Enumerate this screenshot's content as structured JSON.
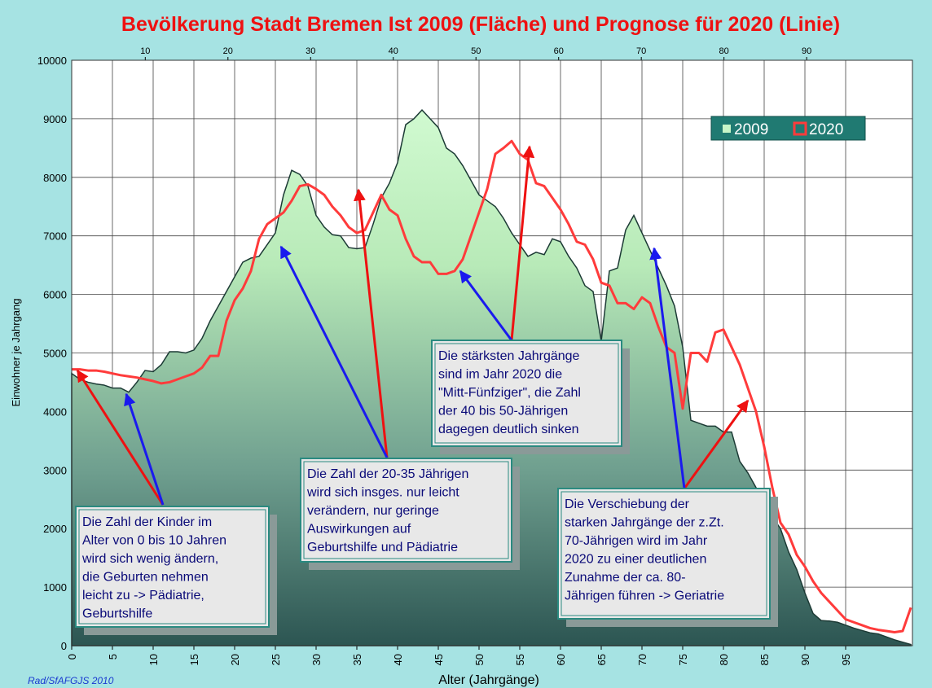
{
  "chart_data": {
    "type": "area_line",
    "title": "Bevölkerung Stadt Bremen Ist 2009 (Fläche) und Prognose für 2020 (Linie)",
    "x_label": "Alter (Jahrgänge)",
    "y_label": "Einwohner je Jahrgang",
    "credit": "Rad/SfAFGJS 2010",
    "x": [
      0,
      1,
      2,
      3,
      4,
      5,
      6,
      7,
      8,
      9,
      10,
      11,
      12,
      13,
      14,
      15,
      16,
      17,
      18,
      19,
      20,
      21,
      22,
      23,
      24,
      25,
      26,
      27,
      28,
      29,
      30,
      31,
      32,
      33,
      34,
      35,
      36,
      37,
      38,
      39,
      40,
      41,
      42,
      43,
      44,
      45,
      46,
      47,
      48,
      49,
      50,
      51,
      52,
      53,
      54,
      55,
      56,
      57,
      58,
      59,
      60,
      61,
      62,
      63,
      64,
      65,
      66,
      67,
      68,
      69,
      70,
      71,
      72,
      73,
      74,
      75,
      76,
      77,
      78,
      79,
      80,
      81,
      82,
      83,
      84,
      85,
      86,
      87,
      88,
      89,
      90,
      91,
      92,
      93,
      94,
      95,
      96,
      97,
      98,
      99,
      100,
      101,
      102,
      103
    ],
    "series": [
      {
        "name": "2009",
        "color": "#c8f5c8",
        "values": [
          4650,
          4550,
          4500,
          4470,
          4450,
          4400,
          4400,
          4330,
          4500,
          4700,
          4680,
          4800,
          5020,
          5020,
          5000,
          5050,
          5250,
          5550,
          5800,
          6050,
          6300,
          6550,
          6620,
          6650,
          6850,
          7050,
          7700,
          8120,
          8050,
          7850,
          7350,
          7150,
          7020,
          7000,
          6800,
          6780,
          6800,
          7200,
          7650,
          7900,
          8250,
          8900,
          9000,
          9150,
          9000,
          8850,
          8500,
          8400,
          8200,
          7950,
          7700,
          7600,
          7500,
          7300,
          7050,
          6850,
          6650,
          6720,
          6680,
          6950,
          6900,
          6650,
          6450,
          6150,
          6050,
          5200,
          6400,
          6450,
          7100,
          7350,
          7050,
          6750,
          6450,
          6150,
          5800,
          5100,
          3850,
          3800,
          3750,
          3750,
          3650,
          3650,
          3150,
          2950,
          2700,
          2350,
          2200,
          2000,
          1600,
          1300,
          900,
          550,
          430,
          420,
          400,
          350,
          300,
          260,
          220,
          200,
          150,
          100,
          60,
          20
        ]
      },
      {
        "name": "2020",
        "color": "#ff3b3b",
        "values": [
          4720,
          4720,
          4700,
          4700,
          4680,
          4650,
          4620,
          4600,
          4580,
          4550,
          4520,
          4480,
          4500,
          4550,
          4600,
          4650,
          4750,
          4950,
          4950,
          5550,
          5900,
          6100,
          6400,
          6950,
          7200,
          7300,
          7400,
          7600,
          7850,
          7880,
          7800,
          7700,
          7500,
          7350,
          7150,
          7050,
          7100,
          7400,
          7700,
          7450,
          7350,
          6950,
          6650,
          6550,
          6550,
          6350,
          6350,
          6400,
          6600,
          7000,
          7400,
          7800,
          8400,
          8500,
          8620,
          8400,
          8300,
          7900,
          7850,
          7650,
          7450,
          7200,
          6900,
          6850,
          6600,
          6200,
          6150,
          5850,
          5850,
          5750,
          5950,
          5850,
          5450,
          5100,
          5000,
          4050,
          5000,
          5000,
          4850,
          5350,
          5400,
          5100,
          4800,
          4400,
          4000,
          3400,
          2700,
          2100,
          1900,
          1550,
          1350,
          1100,
          900,
          750,
          600,
          450,
          400,
          350,
          300,
          270,
          250,
          230,
          250,
          650
        ]
      }
    ],
    "xlim": [
      0,
      103
    ],
    "xticks": [
      0,
      5,
      10,
      15,
      20,
      25,
      30,
      35,
      40,
      45,
      50,
      55,
      60,
      65,
      70,
      75,
      80,
      85,
      90,
      95
    ],
    "x2lim": [
      1.1,
      102.6
    ],
    "x2ticks": [
      10,
      20,
      30,
      40,
      50,
      60,
      70,
      80,
      90
    ],
    "ylim": [
      0,
      10000
    ],
    "yticks": [
      0,
      1000,
      2000,
      3000,
      4000,
      5000,
      6000,
      7000,
      8000,
      9000,
      10000
    ],
    "grid": true,
    "legend": "upper right",
    "annotations": [
      {
        "lines": [
          "Die Zahl der Kinder im",
          "Alter von 0 bis 10 Jahren",
          "wird sich wenig ändern,",
          "die Geburten nehmen",
          "leicht zu  -> Pädiatrie,",
          "Geburtshilfe"
        ]
      },
      {
        "lines": [
          "Die Zahl der 20-35 Jährigen",
          "wird sich insges. nur leicht",
          "verändern,  nur geringe",
          "Auswirkungen auf",
          "Geburtshilfe und Pädiatrie"
        ]
      },
      {
        "lines": [
          "Die stärksten Jahrgänge",
          "sind im Jahr 2020 die",
          "\"Mitt-Fünfziger\", die Zahl",
          "der 40 bis 50-Jährigen",
          "dagegen deutlich sinken"
        ]
      },
      {
        "lines": [
          "Die Verschiebung der",
          "starken Jahrgänge der z.Zt.",
          "70-Jährigen wird im Jahr",
          "2020 zu einer deutlichen",
          "Zunahme der ca. 80-",
          "Jährigen führen -> Geriatrie"
        ]
      }
    ]
  }
}
